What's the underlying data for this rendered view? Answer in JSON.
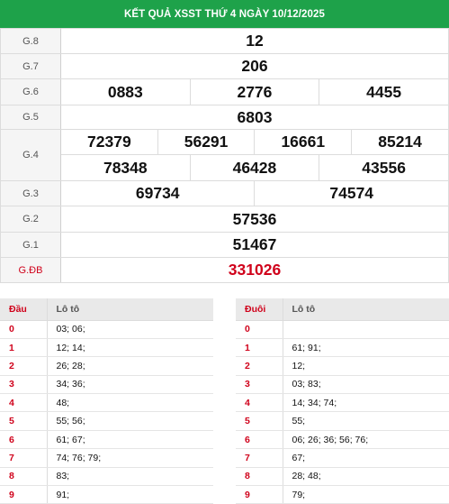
{
  "header": {
    "title": "KẾT QUẢ XSST THỨ 4 NGÀY 10/12/2025"
  },
  "results": {
    "g8": {
      "label": "G.8",
      "values": [
        "12"
      ]
    },
    "g7": {
      "label": "G.7",
      "values": [
        "206"
      ]
    },
    "g6": {
      "label": "G.6",
      "values": [
        "0883",
        "2776",
        "4455"
      ]
    },
    "g5": {
      "label": "G.5",
      "values": [
        "6803"
      ]
    },
    "g4": {
      "label": "G.4",
      "values": [
        "72379",
        "56291",
        "16661",
        "85214",
        "78348",
        "46428",
        "43556"
      ]
    },
    "g3": {
      "label": "G.3",
      "values": [
        "69734",
        "74574"
      ]
    },
    "g2": {
      "label": "G.2",
      "values": [
        "57536"
      ]
    },
    "g1": {
      "label": "G.1",
      "values": [
        "51467"
      ]
    },
    "gdb": {
      "label": "G.ĐB",
      "values": [
        "331026"
      ]
    }
  },
  "loto_head": {
    "col1": "Đầu",
    "col2": "Lô tô",
    "rows": [
      {
        "key": "0",
        "values": "03; 06;"
      },
      {
        "key": "1",
        "values": "12; 14;"
      },
      {
        "key": "2",
        "values": "26; 28;"
      },
      {
        "key": "3",
        "values": "34; 36;"
      },
      {
        "key": "4",
        "values": "48;"
      },
      {
        "key": "5",
        "values": "55; 56;"
      },
      {
        "key": "6",
        "values": "61; 67;"
      },
      {
        "key": "7",
        "values": "74; 76; 79;"
      },
      {
        "key": "8",
        "values": "83;"
      },
      {
        "key": "9",
        "values": "91;"
      }
    ]
  },
  "loto_tail": {
    "col1": "Đuôi",
    "col2": "Lô tô",
    "rows": [
      {
        "key": "0",
        "values": ""
      },
      {
        "key": "1",
        "values": "61; 91;"
      },
      {
        "key": "2",
        "values": "12;"
      },
      {
        "key": "3",
        "values": "03; 83;"
      },
      {
        "key": "4",
        "values": "14; 34; 74;"
      },
      {
        "key": "5",
        "values": "55;"
      },
      {
        "key": "6",
        "values": "06; 26; 36; 56; 76;"
      },
      {
        "key": "7",
        "values": "67;"
      },
      {
        "key": "8",
        "values": "28; 48;"
      },
      {
        "key": "9",
        "values": "79;"
      }
    ]
  },
  "colors": {
    "header_bg": "#1ea24a",
    "special": "#d0021b"
  }
}
